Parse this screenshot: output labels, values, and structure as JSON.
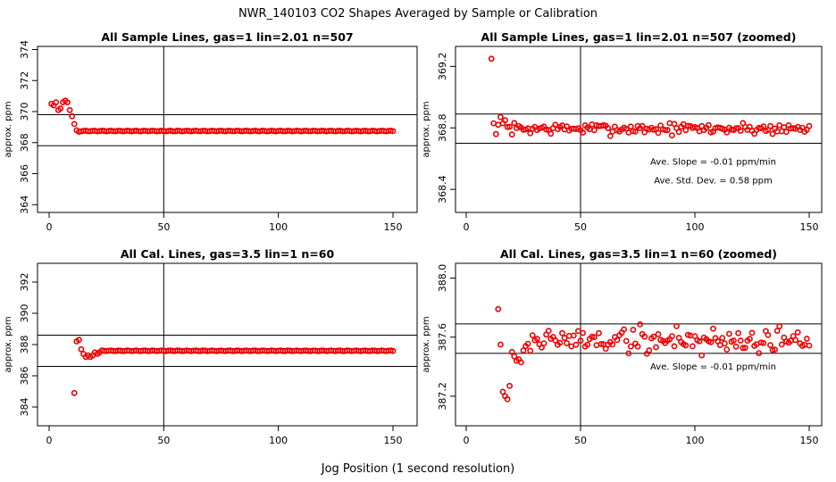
{
  "figure": {
    "title": "NWR_140103  CO2 Shapes Averaged by Sample or Calibration",
    "xlabel": "Jog Position (1 second resolution)"
  },
  "chart_data": [
    {
      "type": "scatter",
      "title": "All Sample Lines, gas=1 lin=2.01 n=507",
      "ylabel": "approx. ppm",
      "xlim": [
        0,
        150
      ],
      "ylim": [
        363.5,
        374.2
      ],
      "xticks": [
        0,
        50,
        100,
        150
      ],
      "yticks": [
        364,
        366,
        368,
        370,
        372,
        374
      ],
      "hlines": [
        367.8,
        369.8
      ],
      "vline": 50,
      "annotations": [],
      "series": [
        {
          "color": "#ee0000",
          "mode": "full",
          "x": [
            1,
            2,
            3,
            4,
            5,
            6,
            7,
            8,
            9,
            10,
            11,
            12,
            13
          ],
          "y": [
            370.5,
            370.4,
            370.6,
            370.1,
            370.2,
            370.6,
            370.7,
            370.6,
            370.1,
            369.7,
            369.2,
            368.8,
            368.7
          ],
          "flat_from": 14,
          "flat_to": 150,
          "flat_value": 368.75
        }
      ]
    },
    {
      "type": "scatter",
      "title": "All Sample Lines, gas=1 lin=2.01 n=507 (zoomed)",
      "ylabel": "approx. ppm",
      "xlim": [
        0,
        150
      ],
      "ylim": [
        368.25,
        369.33
      ],
      "xticks": [
        0,
        50,
        100,
        150
      ],
      "yticks": [
        368.4,
        368.8,
        369.2
      ],
      "hlines": [
        368.7,
        368.89
      ],
      "vline": 50,
      "annotations": [
        {
          "text": "Ave. Slope =  -0.01  ppm/min",
          "x": 108,
          "y": 368.56
        },
        {
          "text": "Ave. Std. Dev. =  0.58  ppm",
          "x": 108,
          "y": 368.44
        }
      ],
      "series": [
        {
          "color": "#ee0000",
          "mode": "noisy",
          "x0": 11,
          "x1": 150,
          "head": [
            369.25,
            368.83,
            368.76,
            368.82,
            368.87,
            368.83,
            368.85
          ],
          "base": 368.795,
          "amp": 0.035,
          "seed": 7
        }
      ]
    },
    {
      "type": "scatter",
      "title": "All Cal. Lines, gas=3.5 lin=1 n=60",
      "ylabel": "approx. ppm",
      "xlim": [
        0,
        150
      ],
      "ylim": [
        382.8,
        393.2
      ],
      "xticks": [
        0,
        50,
        100,
        150
      ],
      "yticks": [
        384,
        386,
        388,
        390,
        392
      ],
      "hlines": [
        386.6,
        388.6
      ],
      "vline": 50,
      "annotations": [],
      "series": [
        {
          "color": "#ee0000",
          "mode": "full",
          "x": [
            11,
            12,
            13,
            14,
            15,
            16,
            17,
            18,
            19,
            20,
            21,
            22
          ],
          "y": [
            384.9,
            388.2,
            388.3,
            387.7,
            387.4,
            387.2,
            387.3,
            387.2,
            387.3,
            387.5,
            387.4,
            387.5
          ],
          "flat_from": 23,
          "flat_to": 150,
          "flat_value": 387.6
        }
      ]
    },
    {
      "type": "scatter",
      "title": "All Cal. Lines, gas=3.5 lin=1 n=60 (zoomed)",
      "ylabel": "approx. ppm",
      "xlim": [
        0,
        150
      ],
      "ylim": [
        387.0,
        388.1
      ],
      "xticks": [
        0,
        50,
        100,
        150
      ],
      "yticks": [
        387.2,
        387.6,
        388.0
      ],
      "hlines": [
        387.49,
        387.69
      ],
      "vline": 50,
      "annotations": [
        {
          "text": "Ave. Slope =  -0.01  ppm/min",
          "x": 108,
          "y": 387.38
        }
      ],
      "series": [
        {
          "color": "#ee0000",
          "mode": "noisy",
          "x0": 14,
          "x1": 150,
          "head": [
            387.79,
            387.55,
            387.23,
            387.2,
            387.18,
            387.27,
            387.5,
            387.47,
            387.44,
            387.45,
            387.43,
            387.51
          ],
          "base": 387.58,
          "amp": 0.09,
          "seed": 19
        }
      ]
    }
  ]
}
